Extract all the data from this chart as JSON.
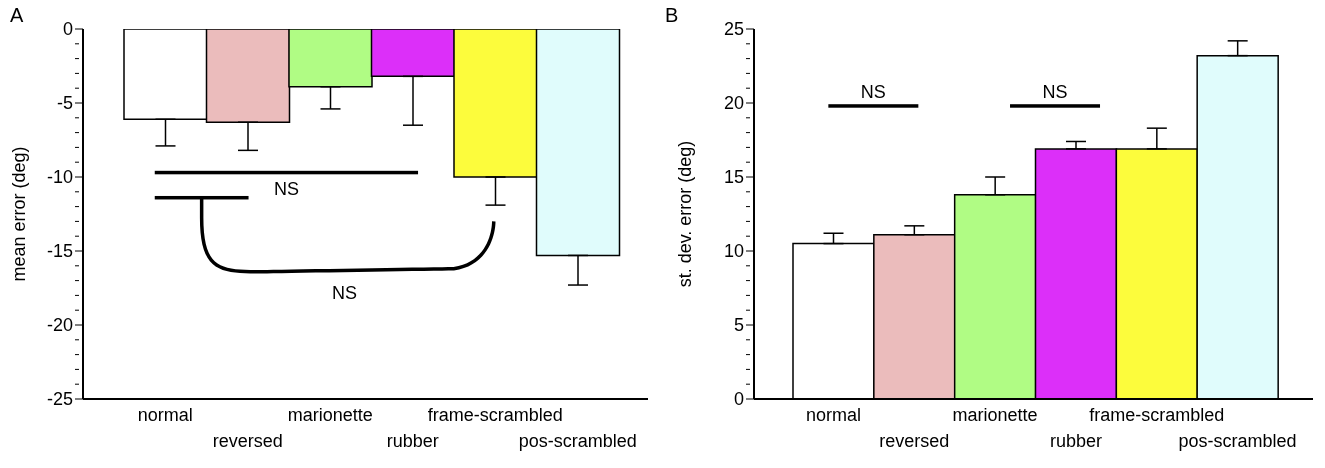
{
  "chart_data": [
    {
      "type": "bar",
      "title": "A",
      "ylabel": "mean error (deg)",
      "categories": [
        "normal",
        "reversed",
        "marionette",
        "rubber",
        "frame-scrambled",
        "pos-scrambled"
      ],
      "values": [
        -6.1,
        -6.3,
        -3.9,
        -3.2,
        -10.0,
        -15.3
      ],
      "colors": [
        "#ffffff",
        "#ebbcbc",
        "#b0fc84",
        "#dc2ff9",
        "#fcfc3c",
        "#e0fcfc"
      ],
      "errors": [
        [
          -7.9,
          -6.1
        ],
        [
          -8.2,
          -6.3
        ],
        [
          -5.4,
          -3.9
        ],
        [
          -6.5,
          -3.2
        ],
        [
          -11.9,
          -10.0
        ],
        [
          -17.3,
          -15.3
        ]
      ],
      "ylim": [
        -25,
        0
      ],
      "yticks": [
        -25,
        {
          "value": -24,
          "label": null
        },
        {
          "value": -23,
          "label": null
        },
        {
          "value": -22,
          "label": null
        },
        {
          "value": -21,
          "label": null
        },
        -20,
        {
          "value": -19,
          "label": null
        },
        {
          "value": -18,
          "label": null
        },
        {
          "value": -17,
          "label": null
        },
        {
          "value": -16,
          "label": null
        },
        -15,
        {
          "value": -14,
          "label": null
        },
        {
          "value": -13,
          "label": null
        },
        {
          "value": -12,
          "label": null
        },
        {
          "value": -11,
          "label": null
        },
        -10,
        {
          "value": -9,
          "label": null
        },
        {
          "value": -8,
          "label": null
        },
        {
          "value": -7,
          "label": null
        },
        {
          "value": -6,
          "label": null
        },
        -5,
        {
          "value": -4,
          "label": null
        },
        {
          "value": -3,
          "label": null
        },
        {
          "value": -2,
          "label": null
        },
        {
          "value": -1,
          "label": null
        },
        0
      ],
      "annotations": [
        "NS",
        "NS"
      ]
    },
    {
      "type": "bar",
      "title": "B",
      "ylabel": "st. dev. error (deg)",
      "categories": [
        "normal",
        "reversed",
        "marionette",
        "rubber",
        "frame-scrambled",
        "pos-scrambled"
      ],
      "values": [
        10.5,
        11.1,
        13.8,
        16.9,
        16.9,
        23.2
      ],
      "colors": [
        "#ffffff",
        "#ebbcbc",
        "#b0fc84",
        "#dc2ff9",
        "#fcfc3c",
        "#e0fcfc"
      ],
      "errors": [
        [
          10.5,
          11.2
        ],
        [
          11.1,
          11.7
        ],
        [
          13.8,
          15.0
        ],
        [
          16.9,
          17.4
        ],
        [
          16.9,
          18.3
        ],
        [
          23.2,
          24.2
        ]
      ],
      "ylim": [
        0,
        25
      ],
      "yticks": [
        0,
        {
          "value": 1,
          "label": null
        },
        {
          "value": 2,
          "label": null
        },
        {
          "value": 3,
          "label": null
        },
        {
          "value": 4,
          "label": null
        },
        5,
        {
          "value": 6,
          "label": null
        },
        {
          "value": 7,
          "label": null
        },
        {
          "value": 8,
          "label": null
        },
        {
          "value": 9,
          "label": null
        },
        10,
        {
          "value": 11,
          "label": null
        },
        {
          "value": 12,
          "label": null
        },
        {
          "value": 13,
          "label": null
        },
        {
          "value": 14,
          "label": null
        },
        15,
        {
          "value": 16,
          "label": null
        },
        {
          "value": 17,
          "label": null
        },
        {
          "value": 18,
          "label": null
        },
        {
          "value": 19,
          "label": null
        },
        20,
        {
          "value": 21,
          "label": null
        },
        {
          "value": 22,
          "label": null
        },
        {
          "value": 23,
          "label": null
        },
        {
          "value": 24,
          "label": null
        },
        25
      ],
      "annotations": [
        "NS",
        "NS"
      ]
    }
  ]
}
